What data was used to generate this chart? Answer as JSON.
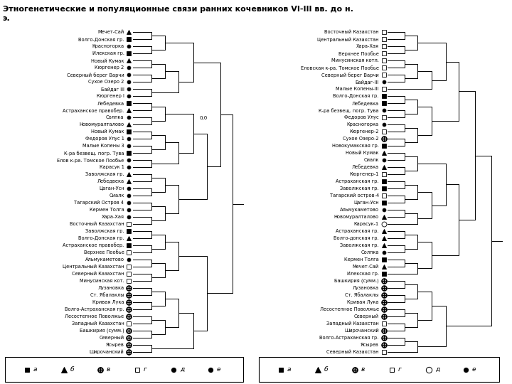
{
  "title": "Этногенетические и популяционные связи ранних кочевников VI-III вв. до н.\nэ.",
  "left_labels": [
    [
      "Мечет-Сай",
      "triangle"
    ],
    [
      "Волго-Донская гр.",
      "square"
    ],
    [
      "Красногорка",
      "dot"
    ],
    [
      "Илекская гр.",
      "square"
    ],
    [
      "Новый Кумак",
      "triangle"
    ],
    [
      "Кюргенер 2",
      "dot"
    ],
    [
      "Северный берег Варчи",
      "dot"
    ],
    [
      "Сухое Озеро 2",
      "dot"
    ],
    [
      "Байдаг III",
      "dot"
    ],
    [
      "Кюргенер I",
      "dot"
    ],
    [
      "Лебедевка",
      "square"
    ],
    [
      "Астраханское правобер.",
      "triangle"
    ],
    [
      "Солпка",
      "dot"
    ],
    [
      "Новомуралталово",
      "triangle"
    ],
    [
      "Новый Кумак",
      "square"
    ],
    [
      "Федоров Улус 1",
      "dot"
    ],
    [
      "Малые Копены 3",
      "dot"
    ],
    [
      "К-ра безвещ. погр. Тува",
      "square"
    ],
    [
      "Елов к-ра. Томское Пообье",
      "dot"
    ],
    [
      "Карасук 1",
      "dot"
    ],
    [
      "Заволжская гр.",
      "triangle"
    ],
    [
      "Лебедвека",
      "triangle"
    ],
    [
      "Цаган-Усн",
      "dot"
    ],
    [
      "Сиалк",
      "dot"
    ],
    [
      "Тагарский Остров 4",
      "dot"
    ],
    [
      "Кермен Толга",
      "dot"
    ],
    [
      "Хара-Хая",
      "dot"
    ],
    [
      "Восточный Казахстан",
      "square_open"
    ],
    [
      "Заволжская гр.",
      "square"
    ],
    [
      "Волго-Донская гр.",
      "triangle"
    ],
    [
      "Астраханское правобер.",
      "square"
    ],
    [
      "Верхнее Пообье",
      "square_open"
    ],
    [
      "Альмукаметово",
      "dot"
    ],
    [
      "Центральный Казахстан",
      "square_open"
    ],
    [
      "Северный Казахстан",
      "square_open"
    ],
    [
      "Минусинская кот.",
      "square_open"
    ],
    [
      "Лузановка",
      "cross_circle"
    ],
    [
      "Ст. Ябалаклы",
      "cross_circle"
    ],
    [
      "Кривая Лука",
      "cross_circle"
    ],
    [
      "Волго-Астраханская гр.",
      "cross_circle"
    ],
    [
      "Лесостепное Поволжье",
      "cross_circle"
    ],
    [
      "Западный Казахстан",
      "square_open"
    ],
    [
      "Башкирия (сумм.)",
      "cross_circle"
    ],
    [
      "Северный",
      "cross_circle"
    ],
    [
      "Ясырев",
      "cross_circle"
    ],
    [
      "Широчанский",
      "cross_circle"
    ]
  ],
  "right_labels": [
    [
      "Восточный Казахстан",
      "square_open"
    ],
    [
      "Центральный Казахстан",
      "square_open"
    ],
    [
      "Хара-Хая",
      "square_open"
    ],
    [
      "Верхнее Пообье",
      "square_open"
    ],
    [
      "Минусинская котл.",
      "square_open"
    ],
    [
      "Еловская к-ра. Томское Пообье",
      "square_open"
    ],
    [
      "Северный берег Варчи",
      "square_open"
    ],
    [
      "Байдаг-III",
      "dot"
    ],
    [
      "Малые Копены-III",
      "square_open"
    ],
    [
      "Волго-Донская гр.",
      "square"
    ],
    [
      "Лебедевка",
      "square"
    ],
    [
      "К-ра безвещ. погр. Тува",
      "dot"
    ],
    [
      "Федоров Улус",
      "square_open"
    ],
    [
      "Красногорка",
      "dot"
    ],
    [
      "Кюргенер-2",
      "square_open"
    ],
    [
      "Сухое Озеро-2",
      "cross_circle"
    ],
    [
      "Новокумакская гр.",
      "square"
    ],
    [
      "Новый Кумак",
      "triangle"
    ],
    [
      "Сиалк",
      "dot"
    ],
    [
      "Лебедевка",
      "triangle"
    ],
    [
      "Кюргенер-1",
      "square_open"
    ],
    [
      "Астраханская гр.",
      "square"
    ],
    [
      "Заволжская гр.",
      "square"
    ],
    [
      "Тагарский остров-4",
      "square_open"
    ],
    [
      "Цаган-Усн",
      "square"
    ],
    [
      "Альмукаметово",
      "dot"
    ],
    [
      "Новомуралталово",
      "triangle"
    ],
    [
      "Карасук-1",
      "circle_open"
    ],
    [
      "Астраханская гр.",
      "triangle"
    ],
    [
      "Волго-донская гр.",
      "triangle"
    ],
    [
      "Заволжская гр.",
      "triangle"
    ],
    [
      "Солпка",
      "dot"
    ],
    [
      "Кермен Толга",
      "square"
    ],
    [
      "Мечет-Сай",
      "triangle"
    ],
    [
      "Илекская гр.",
      "square"
    ],
    [
      "Башкирия (сумм.)",
      "cross_circle"
    ],
    [
      "Лузановка",
      "cross_circle"
    ],
    [
      "Ст. Ябалаклы",
      "cross_circle"
    ],
    [
      "Кривая Лука",
      "cross_circle"
    ],
    [
      "Лесостепное Поволжье",
      "cross_circle"
    ],
    [
      "Северный",
      "cross_circle"
    ],
    [
      "Западный Казахстан",
      "square_open"
    ],
    [
      "Широчанский",
      "cross_circle"
    ],
    [
      "Волго-Астраханская гр.",
      "cross_circle"
    ],
    [
      "Ясырев",
      "cross_circle"
    ],
    [
      "Северный Казахстан",
      "square_open"
    ]
  ],
  "background_color": "#ffffff",
  "text_color": "#000000",
  "line_color": "#000000",
  "label_fontsize": 4.8,
  "marker_size": 4.0
}
